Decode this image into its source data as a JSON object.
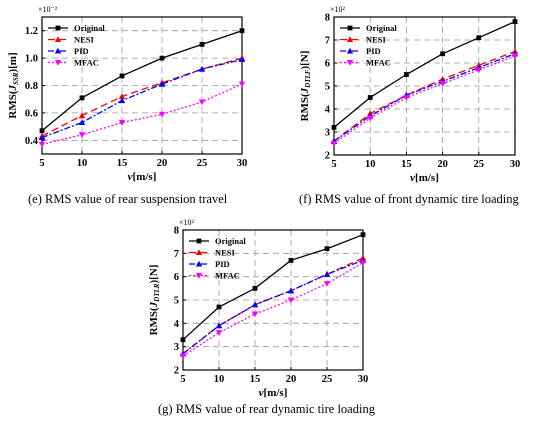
{
  "chart_data": [
    {
      "type": "line",
      "caption": "(e) RMS value of rear suspension travel",
      "xlabel": "v[m/s]",
      "ylabel": "RMS(J_SSR)[m]",
      "ylabel_parts": {
        "pre": "RMS(",
        "italic": "J",
        "sub": "SSR",
        "post": ")[m]"
      },
      "xlabel_parts": {
        "italic": "v",
        "post": "[m/s]"
      },
      "exponent": "×10⁻²",
      "x": [
        5,
        10,
        15,
        20,
        25,
        30
      ],
      "xlim": [
        5,
        30
      ],
      "ylim": [
        0.3,
        1.3
      ],
      "yticks": [
        "0.4",
        "0.6",
        "0.8",
        "1.0",
        "1.2"
      ],
      "ytick_values": [
        0.4,
        0.6,
        0.8,
        1.0,
        1.2
      ],
      "grid": true,
      "legend_position": "top-left",
      "series": [
        {
          "name": "Original",
          "values": [
            0.47,
            0.71,
            0.87,
            1.0,
            1.1,
            1.2
          ]
        },
        {
          "name": "NESI",
          "values": [
            0.43,
            0.58,
            0.72,
            0.82,
            0.92,
            1.0
          ]
        },
        {
          "name": "PID",
          "values": [
            0.42,
            0.53,
            0.69,
            0.81,
            0.92,
            0.99
          ]
        },
        {
          "name": "MFAC",
          "values": [
            0.37,
            0.44,
            0.53,
            0.59,
            0.68,
            0.81
          ]
        }
      ]
    },
    {
      "type": "line",
      "caption": "(f) RMS value of front dynamic tire loading",
      "xlabel": "v[m/s]",
      "ylabel": "RMS(J_DTLF)[N]",
      "ylabel_parts": {
        "pre": "RMS(",
        "italic": "J",
        "sub": "DTLF",
        "post": ")[N]"
      },
      "xlabel_parts": {
        "italic": "v",
        "post": "[m/s]"
      },
      "exponent": "×10²",
      "x": [
        5,
        10,
        15,
        20,
        25,
        30
      ],
      "xlim": [
        5,
        30
      ],
      "ylim": [
        2,
        8
      ],
      "yticks": [
        "2",
        "3",
        "4",
        "5",
        "6",
        "7",
        "8"
      ],
      "ytick_values": [
        2,
        3,
        4,
        5,
        6,
        7,
        8
      ],
      "grid": true,
      "legend_position": "top-left",
      "series": [
        {
          "name": "Original",
          "values": [
            3.2,
            4.5,
            5.5,
            6.4,
            7.1,
            7.8
          ]
        },
        {
          "name": "NESI",
          "values": [
            2.6,
            3.8,
            4.6,
            5.3,
            5.9,
            6.5
          ]
        },
        {
          "name": "PID",
          "values": [
            2.6,
            3.7,
            4.6,
            5.2,
            5.8,
            6.4
          ]
        },
        {
          "name": "MFAC",
          "values": [
            2.5,
            3.6,
            4.5,
            5.1,
            5.7,
            6.3
          ]
        }
      ]
    },
    {
      "type": "line",
      "caption": "(g) RMS value of rear dynamic tire loading",
      "xlabel": "v[m/s]",
      "ylabel": "RMS(J_DTLR)[N]",
      "ylabel_parts": {
        "pre": "RMS(",
        "italic": "J",
        "sub": "DTLR",
        "post": ")[N]"
      },
      "xlabel_parts": {
        "italic": "v",
        "post": "[m/s]"
      },
      "exponent": "×10²",
      "x": [
        5,
        10,
        15,
        20,
        25,
        30
      ],
      "xlim": [
        5,
        30
      ],
      "ylim": [
        2,
        8
      ],
      "yticks": [
        "2",
        "3",
        "4",
        "5",
        "6",
        "7",
        "8"
      ],
      "ytick_values": [
        2,
        3,
        4,
        5,
        6,
        7,
        8
      ],
      "grid": true,
      "legend_position": "top-left",
      "series": [
        {
          "name": "Original",
          "values": [
            3.3,
            4.7,
            5.5,
            6.7,
            7.2,
            7.8
          ]
        },
        {
          "name": "NESI",
          "values": [
            2.7,
            3.9,
            4.8,
            5.4,
            6.1,
            6.8
          ]
        },
        {
          "name": "PID",
          "values": [
            2.7,
            3.9,
            4.8,
            5.4,
            6.1,
            6.7
          ]
        },
        {
          "name": "MFAC",
          "values": [
            2.6,
            3.6,
            4.4,
            5.0,
            5.7,
            6.6
          ]
        }
      ]
    }
  ],
  "xticks": [
    "5",
    "10",
    "15",
    "20",
    "25",
    "30"
  ],
  "series_styles": [
    {
      "color": "#000000",
      "dash": "",
      "marker": "square"
    },
    {
      "color": "#ff0000",
      "dash": "7,4",
      "marker": "triangle"
    },
    {
      "color": "#0000ff",
      "dash": "6,2,2,2",
      "marker": "triangle"
    },
    {
      "color": "#ff00ff",
      "dash": "2,2",
      "marker": "triangle-down"
    }
  ]
}
